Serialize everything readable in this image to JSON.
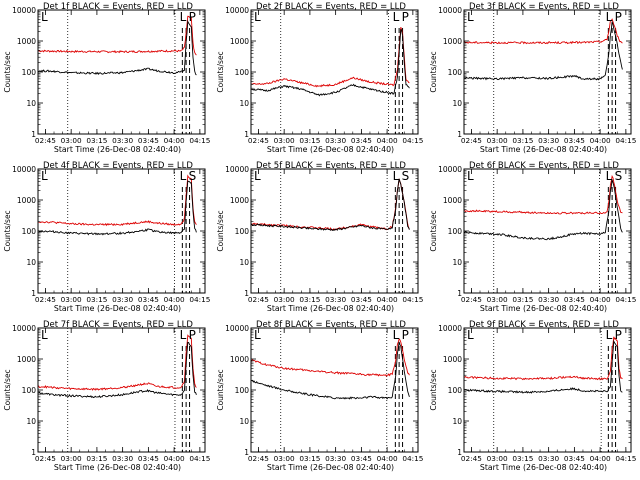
{
  "chart_data": [
    {
      "type": "line",
      "title": "Det 1f BLACK = Events, RED = LLD",
      "xlabel": "Start Time (26-Dec-08 02:40:40)",
      "ylabel": "Counts/sec",
      "x_ticks": [
        "02:45",
        "03:00",
        "03:15",
        "03:30",
        "03:45",
        "04:00",
        "04:15"
      ],
      "y_ticks": [
        "1",
        "10",
        "100",
        "1000",
        "10000"
      ],
      "y_scale": "log",
      "ylim": [
        1,
        10000
      ],
      "markers": [
        "L",
        "P"
      ],
      "series": [
        {
          "color": "#000000",
          "x": [
            "02:41",
            "02:50",
            "03:00",
            "03:15",
            "03:30",
            "03:40",
            "03:45",
            "03:50",
            "04:00",
            "04:04",
            "04:06",
            "04:07",
            "04:08",
            "04:10",
            "04:11",
            "04:12",
            "04:13"
          ],
          "values": [
            110,
            105,
            95,
            90,
            95,
            115,
            125,
            110,
            95,
            100,
            120,
            900,
            4000,
            3000,
            300,
            100,
            80
          ]
        },
        {
          "color": "#dd0000",
          "x": [
            "02:41",
            "03:00",
            "03:30",
            "03:50",
            "04:00",
            "04:04",
            "04:06",
            "04:07",
            "04:08",
            "04:10",
            "04:11",
            "04:12",
            "04:13"
          ],
          "values": [
            480,
            460,
            450,
            470,
            480,
            470,
            600,
            1800,
            6000,
            5500,
            900,
            400,
            350
          ]
        }
      ]
    },
    {
      "type": "line",
      "title": "Det 2f BLACK = Events, RED = LLD",
      "xlabel": "Start Time (26-Dec-08 02:40:40)",
      "ylabel": "Counts/sec",
      "x_ticks": [
        "02:45",
        "03:00",
        "03:15",
        "03:30",
        "03:45",
        "04:00",
        "04:15"
      ],
      "y_ticks": [
        "1",
        "10",
        "100",
        "1000",
        "10000"
      ],
      "y_scale": "log",
      "ylim": [
        1,
        10000
      ],
      "markers": [
        "L",
        "P"
      ],
      "series": [
        {
          "color": "#000000",
          "x": [
            "02:41",
            "02:50",
            "03:00",
            "03:10",
            "03:20",
            "03:30",
            "03:40",
            "03:50",
            "04:00",
            "04:04",
            "04:06",
            "04:07",
            "04:08",
            "04:09",
            "04:10",
            "04:11",
            "04:13"
          ],
          "values": [
            28,
            25,
            35,
            28,
            18,
            22,
            38,
            28,
            22,
            20,
            70,
            400,
            2500,
            1500,
            200,
            40,
            30
          ]
        },
        {
          "color": "#dd0000",
          "x": [
            "02:41",
            "02:50",
            "03:00",
            "03:10",
            "03:20",
            "03:30",
            "03:40",
            "03:50",
            "04:00",
            "04:04",
            "04:06",
            "04:07",
            "04:08",
            "04:09",
            "04:10",
            "04:11",
            "04:13"
          ],
          "values": [
            40,
            42,
            60,
            45,
            35,
            40,
            65,
            48,
            40,
            38,
            120,
            600,
            3000,
            1800,
            300,
            60,
            45
          ]
        }
      ]
    },
    {
      "type": "line",
      "title": "Det 3f BLACK = Events, RED = LLD",
      "xlabel": "Start Time (26-Dec-08 02:40:40)",
      "ylabel": "Counts/sec",
      "x_ticks": [
        "02:45",
        "03:00",
        "03:15",
        "03:30",
        "03:45",
        "04:00",
        "04:15"
      ],
      "y_ticks": [
        "1",
        "10",
        "100",
        "1000",
        "10000"
      ],
      "y_scale": "log",
      "ylim": [
        1,
        10000
      ],
      "markers": [
        "L",
        "P"
      ],
      "series": [
        {
          "color": "#000000",
          "x": [
            "02:41",
            "02:50",
            "03:00",
            "03:15",
            "03:30",
            "03:45",
            "03:50",
            "04:00",
            "04:03",
            "04:05",
            "04:06",
            "04:07",
            "04:08",
            "04:10",
            "04:12",
            "04:13"
          ],
          "values": [
            65,
            62,
            60,
            65,
            62,
            75,
            60,
            60,
            75,
            350,
            1500,
            4000,
            2500,
            800,
            200,
            120
          ]
        },
        {
          "color": "#dd0000",
          "x": [
            "02:41",
            "03:00",
            "03:30",
            "03:50",
            "04:00",
            "04:04",
            "04:05",
            "04:06",
            "04:07",
            "04:08",
            "04:10",
            "04:12",
            "04:13"
          ],
          "values": [
            900,
            880,
            880,
            900,
            950,
            1100,
            2000,
            4500,
            5000,
            3500,
            1500,
            900,
            850
          ]
        }
      ]
    },
    {
      "type": "line",
      "title": "Det 4f BLACK = Events, RED = LLD",
      "xlabel": "Start Time (26-Dec-08 02:40:40)",
      "ylabel": "Counts/sec",
      "x_ticks": [
        "02:45",
        "03:00",
        "03:15",
        "03:30",
        "03:45",
        "04:00",
        "04:15"
      ],
      "y_ticks": [
        "1",
        "10",
        "100",
        "1000",
        "10000"
      ],
      "y_scale": "log",
      "ylim": [
        1,
        10000
      ],
      "markers": [
        "L",
        "S"
      ],
      "series": [
        {
          "color": "#000000",
          "x": [
            "02:41",
            "02:50",
            "03:00",
            "03:15",
            "03:30",
            "03:40",
            "03:45",
            "03:50",
            "04:00",
            "04:04",
            "04:06",
            "04:07",
            "04:08",
            "04:10",
            "04:11",
            "04:12",
            "04:13"
          ],
          "values": [
            100,
            95,
            85,
            80,
            85,
            100,
            110,
            95,
            85,
            90,
            120,
            900,
            4000,
            3500,
            400,
            120,
            90
          ]
        },
        {
          "color": "#dd0000",
          "x": [
            "02:41",
            "02:50",
            "03:00",
            "03:15",
            "03:30",
            "03:40",
            "03:45",
            "03:50",
            "04:00",
            "04:04",
            "04:06",
            "04:07",
            "04:08",
            "04:10",
            "04:11",
            "04:12",
            "04:13"
          ],
          "values": [
            200,
            190,
            170,
            160,
            165,
            190,
            200,
            180,
            160,
            170,
            250,
            1500,
            6000,
            5000,
            600,
            200,
            160
          ]
        }
      ]
    },
    {
      "type": "line",
      "title": "Det 5f BLACK = Events, RED = LLD",
      "xlabel": "Start Time (26-Dec-08 02:40:40)",
      "ylabel": "Counts/sec",
      "x_ticks": [
        "02:45",
        "03:00",
        "03:15",
        "03:30",
        "03:45",
        "04:00",
        "04:15"
      ],
      "y_ticks": [
        "1",
        "10",
        "100",
        "1000",
        "10000"
      ],
      "y_scale": "log",
      "ylim": [
        1,
        10000
      ],
      "markers": [
        "L",
        "S"
      ],
      "series": [
        {
          "color": "#000000",
          "x": [
            "02:41",
            "02:50",
            "03:00",
            "03:15",
            "03:30",
            "03:45",
            "03:50",
            "04:00",
            "04:03",
            "04:05",
            "04:06",
            "04:07",
            "04:08",
            "04:10",
            "04:12",
            "04:13"
          ],
          "values": [
            160,
            150,
            140,
            120,
            110,
            150,
            130,
            110,
            130,
            500,
            2000,
            4500,
            3000,
            800,
            150,
            110
          ]
        },
        {
          "color": "#dd0000",
          "x": [
            "02:41",
            "02:50",
            "03:00",
            "03:15",
            "03:30",
            "03:45",
            "03:50",
            "04:00",
            "04:03",
            "04:05",
            "04:06",
            "04:07",
            "04:08",
            "04:10",
            "04:12",
            "04:13"
          ],
          "values": [
            170,
            160,
            150,
            130,
            115,
            160,
            140,
            115,
            140,
            550,
            2100,
            4700,
            3200,
            850,
            160,
            115
          ]
        }
      ]
    },
    {
      "type": "line",
      "title": "Det 6f BLACK = Events, RED = LLD",
      "xlabel": "Start Time (26-Dec-08 02:40:40)",
      "ylabel": "Counts/sec",
      "x_ticks": [
        "02:45",
        "03:00",
        "03:15",
        "03:30",
        "03:45",
        "04:00",
        "04:15"
      ],
      "y_ticks": [
        "1",
        "10",
        "100",
        "1000",
        "10000"
      ],
      "y_scale": "log",
      "ylim": [
        1,
        10000
      ],
      "markers": [
        "L",
        "S"
      ],
      "series": [
        {
          "color": "#000000",
          "x": [
            "02:41",
            "02:50",
            "03:00",
            "03:15",
            "03:30",
            "03:45",
            "03:50",
            "04:00",
            "04:03",
            "04:05",
            "04:06",
            "04:07",
            "04:08",
            "04:10",
            "04:12",
            "04:13"
          ],
          "values": [
            90,
            85,
            80,
            60,
            55,
            80,
            85,
            80,
            90,
            400,
            1800,
            4500,
            3000,
            600,
            120,
            90
          ]
        },
        {
          "color": "#dd0000",
          "x": [
            "02:41",
            "03:00",
            "03:30",
            "03:50",
            "04:00",
            "04:04",
            "04:05",
            "04:06",
            "04:07",
            "04:08",
            "04:10",
            "04:12",
            "04:13"
          ],
          "values": [
            450,
            420,
            380,
            380,
            380,
            400,
            800,
            3000,
            6000,
            4000,
            900,
            400,
            380
          ]
        }
      ]
    },
    {
      "type": "line",
      "title": "Det 7f BLACK = Events, RED = LLD",
      "xlabel": "Start Time (26-Dec-08 02:40:40)",
      "ylabel": "Counts/sec",
      "x_ticks": [
        "02:45",
        "03:00",
        "03:15",
        "03:30",
        "03:45",
        "04:00",
        "04:15"
      ],
      "y_ticks": [
        "1",
        "10",
        "100",
        "1000",
        "10000"
      ],
      "y_scale": "log",
      "ylim": [
        1,
        10000
      ],
      "markers": [
        "L",
        "P"
      ],
      "series": [
        {
          "color": "#000000",
          "x": [
            "02:41",
            "02:50",
            "03:00",
            "03:15",
            "03:30",
            "03:40",
            "03:45",
            "03:50",
            "04:00",
            "04:04",
            "04:06",
            "04:07",
            "04:08",
            "04:10",
            "04:11",
            "04:12",
            "04:13"
          ],
          "values": [
            80,
            70,
            65,
            60,
            70,
            90,
            95,
            80,
            70,
            70,
            100,
            700,
            3500,
            2500,
            300,
            90,
            70
          ]
        },
        {
          "color": "#dd0000",
          "x": [
            "02:41",
            "02:50",
            "03:00",
            "03:15",
            "03:30",
            "03:40",
            "03:45",
            "03:50",
            "04:00",
            "04:04",
            "04:06",
            "04:07",
            "04:08",
            "04:10",
            "04:11",
            "04:12",
            "04:13"
          ],
          "values": [
            130,
            120,
            110,
            105,
            120,
            150,
            160,
            130,
            120,
            120,
            200,
            1500,
            6000,
            4500,
            500,
            150,
            120
          ]
        }
      ]
    },
    {
      "type": "line",
      "title": "Det 8f BLACK = Events, RED = LLD",
      "xlabel": "Start Time (26-Dec-08 02:40:40)",
      "ylabel": "Counts/sec",
      "x_ticks": [
        "02:45",
        "03:00",
        "03:15",
        "03:30",
        "03:45",
        "04:00",
        "04:15"
      ],
      "y_ticks": [
        "1",
        "10",
        "100",
        "1000",
        "10000"
      ],
      "y_scale": "log",
      "ylim": [
        1,
        10000
      ],
      "markers": [
        "L",
        "P"
      ],
      "series": [
        {
          "color": "#000000",
          "x": [
            "02:41",
            "02:50",
            "03:00",
            "03:15",
            "03:30",
            "03:45",
            "03:50",
            "04:00",
            "04:03",
            "04:05",
            "04:06",
            "04:07",
            "04:08",
            "04:10",
            "04:12",
            "04:13"
          ],
          "values": [
            200,
            140,
            100,
            70,
            55,
            55,
            60,
            55,
            60,
            300,
            1500,
            3500,
            2500,
            400,
            90,
            60
          ]
        },
        {
          "color": "#dd0000",
          "x": [
            "02:41",
            "02:50",
            "03:00",
            "03:15",
            "03:30",
            "03:45",
            "03:50",
            "04:00",
            "04:03",
            "04:05",
            "04:06",
            "04:07",
            "04:08",
            "04:10",
            "04:12",
            "04:13"
          ],
          "values": [
            900,
            650,
            500,
            420,
            360,
            320,
            310,
            300,
            320,
            900,
            3000,
            4500,
            3500,
            1000,
            350,
            300
          ]
        }
      ]
    },
    {
      "type": "line",
      "title": "Det 9f BLACK = Events, RED = LLD",
      "xlabel": "Start Time (26-Dec-08 02:40:40)",
      "ylabel": "Counts/sec",
      "x_ticks": [
        "02:45",
        "03:00",
        "03:15",
        "03:30",
        "03:45",
        "04:00",
        "04:15"
      ],
      "y_ticks": [
        "1",
        "10",
        "100",
        "1000",
        "10000"
      ],
      "y_scale": "log",
      "ylim": [
        1,
        10000
      ],
      "markers": [
        "L",
        "P"
      ],
      "series": [
        {
          "color": "#000000",
          "x": [
            "02:41",
            "02:50",
            "03:00",
            "03:15",
            "03:30",
            "03:40",
            "03:45",
            "03:50",
            "04:00",
            "04:04",
            "04:06",
            "04:07",
            "04:08",
            "04:10",
            "04:11",
            "04:12",
            "04:13"
          ],
          "values": [
            100,
            95,
            90,
            85,
            90,
            105,
            110,
            95,
            90,
            90,
            120,
            800,
            3500,
            2500,
            300,
            100,
            85
          ]
        },
        {
          "color": "#dd0000",
          "x": [
            "02:41",
            "02:50",
            "03:00",
            "03:15",
            "03:30",
            "03:40",
            "03:45",
            "03:50",
            "04:00",
            "04:04",
            "04:06",
            "04:07",
            "04:08",
            "04:10",
            "04:11",
            "04:12",
            "04:13"
          ],
          "values": [
            260,
            250,
            240,
            230,
            235,
            260,
            270,
            240,
            230,
            230,
            400,
            2000,
            5000,
            4000,
            500,
            260,
            230
          ]
        }
      ]
    }
  ]
}
